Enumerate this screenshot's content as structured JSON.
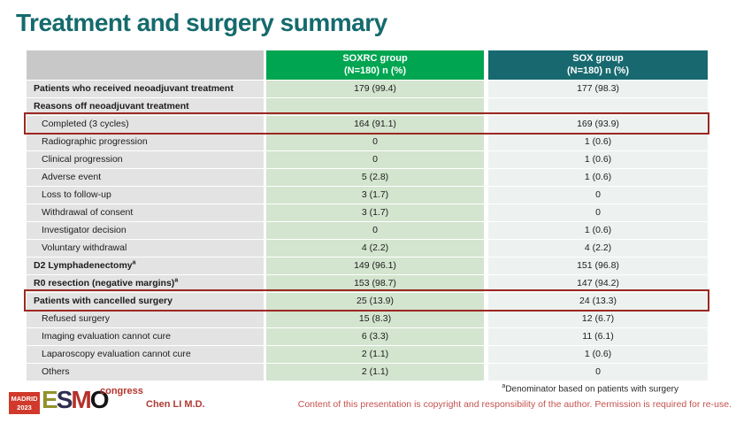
{
  "slide": {
    "title": "Treatment and surgery summary"
  },
  "table": {
    "columns": [
      {
        "label": "SOXRC group",
        "sublabel": "(N=180)  n (%)"
      },
      {
        "label": "SOX group",
        "sublabel": "(N=180)  n (%)"
      }
    ],
    "rows": [
      {
        "label": "Patients who received neoadjuvant treatment",
        "bold": true,
        "indent": false,
        "soxrc": "179 (99.4)",
        "sox": "177 (98.3)",
        "highlight": false
      },
      {
        "label": "Reasons off neoadjuvant treatment",
        "bold": true,
        "indent": false,
        "soxrc": "",
        "sox": "",
        "highlight": false
      },
      {
        "label": "Completed (3 cycles)",
        "bold": false,
        "indent": true,
        "soxrc": "164 (91.1)",
        "sox": "169 (93.9)",
        "highlight": true
      },
      {
        "label": "Radiographic progression",
        "bold": false,
        "indent": true,
        "soxrc": "0",
        "sox": "1 (0.6)",
        "highlight": false
      },
      {
        "label": "Clinical progression",
        "bold": false,
        "indent": true,
        "soxrc": "0",
        "sox": "1 (0.6)",
        "highlight": false
      },
      {
        "label": "Adverse event",
        "bold": false,
        "indent": true,
        "soxrc": "5 (2.8)",
        "sox": "1 (0.6)",
        "highlight": false
      },
      {
        "label": "Loss to follow-up",
        "bold": false,
        "indent": true,
        "soxrc": "3 (1.7)",
        "sox": "0",
        "highlight": false
      },
      {
        "label": "Withdrawal of consent",
        "bold": false,
        "indent": true,
        "soxrc": "3 (1.7)",
        "sox": "0",
        "highlight": false
      },
      {
        "label": "Investigator decision",
        "bold": false,
        "indent": true,
        "soxrc": "0",
        "sox": "1 (0.6)",
        "highlight": false
      },
      {
        "label": "Voluntary withdrawal",
        "bold": false,
        "indent": true,
        "soxrc": "4 (2.2)",
        "sox": "4 (2.2)",
        "highlight": false
      },
      {
        "label": "D2 Lymphadenectomy",
        "sup": "a",
        "bold": true,
        "indent": false,
        "soxrc": "149 (96.1)",
        "sox": "151 (96.8)",
        "highlight": false
      },
      {
        "label": "R0 resection (negative margins)",
        "sup": "a",
        "bold": true,
        "indent": false,
        "soxrc": "153 (98.7)",
        "sox": "147 (94.2)",
        "highlight": false
      },
      {
        "label": "Patients with cancelled surgery",
        "bold": true,
        "indent": false,
        "soxrc": "25 (13.9)",
        "sox": "24 (13.3)",
        "highlight": true
      },
      {
        "label": "Refused surgery",
        "bold": false,
        "indent": true,
        "soxrc": "15 (8.3)",
        "sox": "12 (6.7)",
        "highlight": false
      },
      {
        "label": "Imaging evaluation cannot cure",
        "bold": false,
        "indent": true,
        "soxrc": "6 (3.3)",
        "sox": "11 (6.1)",
        "highlight": false
      },
      {
        "label": "Laparoscopy evaluation cannot cure",
        "bold": false,
        "indent": true,
        "soxrc": "2 (1.1)",
        "sox": "1 (0.6)",
        "highlight": false
      },
      {
        "label": "Others",
        "bold": false,
        "indent": true,
        "soxrc": "2 (1.1)",
        "sox": "0",
        "highlight": false
      }
    ]
  },
  "footer": {
    "logo": {
      "badge_line1": "MADRID",
      "badge_line2": "2023",
      "letters": [
        "E",
        "S",
        "M",
        "O"
      ],
      "congress": "congress"
    },
    "author": "Chen LI M.D.",
    "footnote_sup": "a",
    "footnote": "Denominator based on patients with surgery",
    "copyright": "Content of this presentation is copyright and responsibility of the author. Permission is required for re-use."
  },
  "colors": {
    "title": "#156a6d",
    "header_soxrc": "#00a551",
    "header_sox": "#17696f",
    "header_empty": "#c8c8c8",
    "label_col": "#e4e3e3",
    "soxrc_col": "#d3e4cf",
    "sox_col": "#edf2f0",
    "highlight_border": "#9c2822",
    "author_text": "#ae3c36",
    "copyright_text": "#c4524e"
  }
}
